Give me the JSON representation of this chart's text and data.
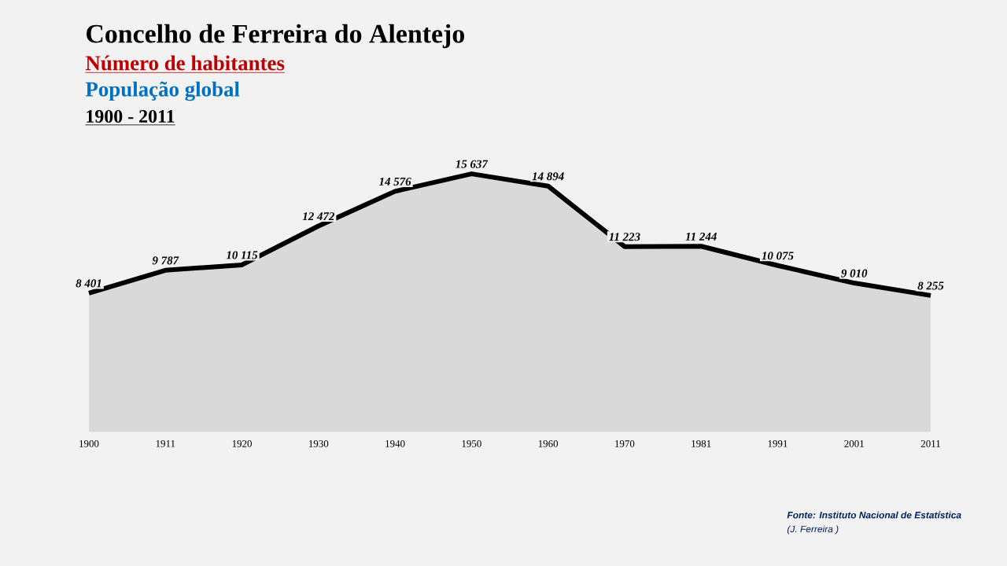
{
  "chart_data": {
    "type": "area",
    "title": "Concelho de Ferreira do Alentejo",
    "subtitle": "Número de habitantes",
    "annotations": [
      "População global",
      "1900 - 2011",
      "Fonte: Instituto Nacional de Estatística",
      "(J. Ferreira )"
    ],
    "categories": [
      "1900",
      "1911",
      "1920",
      "1930",
      "1940",
      "1950",
      "1960",
      "1970",
      "1981",
      "1991",
      "2001",
      "2011"
    ],
    "values": [
      8401,
      9787,
      10115,
      12472,
      14576,
      15637,
      14894,
      11223,
      11244,
      10075,
      9010,
      8255
    ],
    "value_labels": [
      "8 401",
      "9 787",
      "10 115",
      "12 472",
      "14 576",
      "15 637",
      "14 894",
      "11 223",
      "11 244",
      "10 075",
      "9 010",
      "8 255"
    ],
    "color": "#d9d9d9",
    "tick_labels": "x",
    "grid": false
  }
}
